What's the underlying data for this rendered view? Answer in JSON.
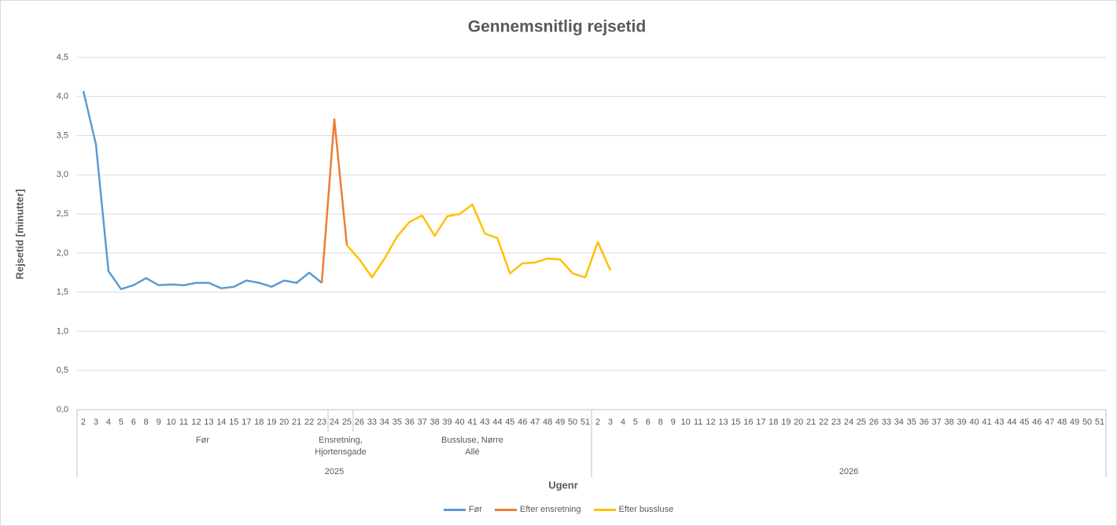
{
  "chart_data": {
    "type": "line",
    "title": "Gennemsnitlig rejsetid",
    "y_label": "Rejsetid [minutter]",
    "x_label": "Ugenr",
    "ylim": [
      0,
      4.5
    ],
    "yticks": [
      {
        "value": 0,
        "label": "0,0"
      },
      {
        "value": 0.5,
        "label": "0,5"
      },
      {
        "value": 1,
        "label": "1,0"
      },
      {
        "value": 1.5,
        "label": "1,5"
      },
      {
        "value": 2,
        "label": "2,0"
      },
      {
        "value": 2.5,
        "label": "2,5"
      },
      {
        "value": 3,
        "label": "3,0"
      },
      {
        "value": 3.5,
        "label": "3,5"
      },
      {
        "value": 4,
        "label": "4,0"
      },
      {
        "value": 4.5,
        "label": "4,5"
      }
    ],
    "grid": true,
    "legend": "bottom",
    "years": [
      {
        "name": "2025",
        "groups": [
          {
            "name": "Før",
            "weeks": [
              "2",
              "3",
              "4",
              "5",
              "6",
              "8",
              "9",
              "10",
              "11",
              "12",
              "13",
              "14",
              "15",
              "17",
              "18",
              "19",
              "20",
              "21",
              "22",
              "23"
            ]
          },
          {
            "name": "Ensretning, Hjortensgade",
            "weeks": [
              "24",
              "25"
            ]
          },
          {
            "name": "Bussluse, Nørre Allé",
            "weeks": [
              "26",
              "33",
              "34",
              "35",
              "36",
              "37",
              "38",
              "39",
              "40",
              "41",
              "43",
              "44",
              "45",
              "46",
              "47",
              "48",
              "49",
              "50",
              "51"
            ]
          }
        ]
      },
      {
        "name": "2026",
        "groups": [
          {
            "name": null,
            "weeks": [
              "2",
              "3",
              "4",
              "5",
              "6",
              "8",
              "9",
              "10",
              "11",
              "12",
              "13",
              "15",
              "16",
              "17",
              "18",
              "19",
              "20",
              "21",
              "22",
              "23",
              "24",
              "25",
              "26",
              "33",
              "34",
              "35",
              "36",
              "37",
              "38",
              "39",
              "40",
              "41",
              "43",
              "44",
              "45",
              "46",
              "47",
              "48",
              "49",
              "50",
              "51"
            ]
          }
        ]
      }
    ],
    "series": [
      {
        "name": "Før",
        "color": "#5b9bd5",
        "values": [
          4.07,
          3.39,
          1.77,
          1.54,
          1.59,
          1.68,
          1.59,
          1.6,
          1.59,
          1.62,
          1.62,
          1.55,
          1.57,
          1.65,
          1.62,
          1.57,
          1.65,
          1.62,
          1.75,
          1.62,
          null,
          null,
          null,
          null,
          null,
          null,
          null,
          null,
          null,
          null,
          null,
          null,
          null,
          null,
          null,
          null,
          null,
          null,
          null,
          null,
          null,
          null,
          null,
          null,
          null,
          null,
          null,
          null,
          null,
          null,
          null,
          null,
          null,
          null,
          null,
          null,
          null,
          null,
          null,
          null,
          null,
          null,
          null,
          null,
          null,
          null,
          null,
          null,
          null,
          null,
          null,
          null,
          null,
          null,
          null,
          null,
          null,
          null,
          null,
          null,
          null,
          null
        ]
      },
      {
        "name": "Efter ensretning",
        "color": "#ed7d31",
        "values": [
          null,
          null,
          null,
          null,
          null,
          null,
          null,
          null,
          null,
          null,
          null,
          null,
          null,
          null,
          null,
          null,
          null,
          null,
          null,
          1.62,
          3.71,
          2.1,
          null,
          null,
          null,
          null,
          null,
          null,
          null,
          null,
          null,
          null,
          null,
          null,
          null,
          null,
          null,
          null,
          null,
          null,
          null,
          null,
          null,
          null,
          null,
          null,
          null,
          null,
          null,
          null,
          null,
          null,
          null,
          null,
          null,
          null,
          null,
          null,
          null,
          null,
          null,
          null,
          null,
          null,
          null,
          null,
          null,
          null,
          null,
          null,
          null,
          null,
          null,
          null,
          null,
          null,
          null,
          null,
          null,
          null,
          null,
          null
        ]
      },
      {
        "name": "Efter bussluse",
        "color": "#ffc000",
        "values": [
          null,
          null,
          null,
          null,
          null,
          null,
          null,
          null,
          null,
          null,
          null,
          null,
          null,
          null,
          null,
          null,
          null,
          null,
          null,
          null,
          null,
          2.1,
          1.92,
          1.69,
          1.93,
          2.21,
          2.4,
          2.48,
          2.22,
          2.47,
          2.5,
          2.62,
          2.25,
          2.19,
          1.74,
          1.87,
          1.88,
          1.93,
          1.92,
          1.74,
          1.69,
          2.14,
          1.78,
          null,
          null,
          null,
          null,
          null,
          null,
          null,
          null,
          null,
          null,
          null,
          null,
          null,
          null,
          null,
          null,
          null,
          null,
          null,
          null,
          null,
          null,
          null,
          null,
          null,
          null,
          null,
          null,
          null,
          null,
          null,
          null,
          null,
          null,
          null,
          null,
          null,
          null,
          null
        ]
      }
    ]
  }
}
